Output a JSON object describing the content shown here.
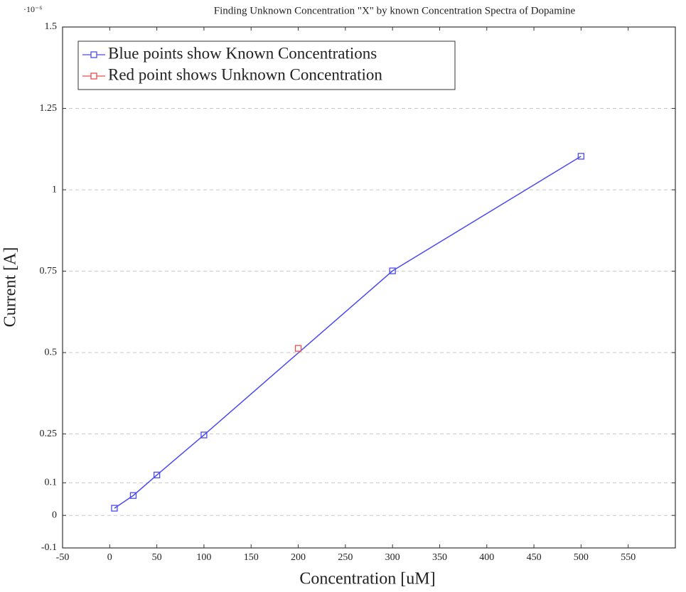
{
  "chart_data": {
    "type": "line",
    "title": "Finding Unknown Concentration \"X\" by known Concentration Spectra of Dopamine",
    "y_multiplier": "·10⁻⁶",
    "x_label": "Concentration [uM]",
    "y_label": "Current [A]",
    "xlim": [
      -50,
      600
    ],
    "xticks": [
      -50,
      0,
      50,
      100,
      150,
      200,
      250,
      300,
      350,
      400,
      450,
      500,
      550
    ],
    "ylim": [
      -0.1,
      1.5
    ],
    "yticks": [
      -0.1,
      0,
      0.1,
      0.25,
      0.5,
      0.75,
      1,
      1.25,
      1.5
    ],
    "grid": true,
    "legend": "top-left",
    "series": [
      {
        "name": "Blue points show Known Concentrations",
        "color": "#4b4bf0",
        "mode": "lines+markers",
        "x": [
          5,
          25,
          50,
          100,
          300,
          500
        ],
        "values": [
          0.022,
          0.061,
          0.124,
          0.247,
          0.751,
          1.103
        ]
      },
      {
        "name": "Red point shows Unknown Concentration",
        "color": "#f04b4b",
        "mode": "markers",
        "x": [
          200
        ],
        "values": [
          0.513
        ]
      }
    ]
  }
}
